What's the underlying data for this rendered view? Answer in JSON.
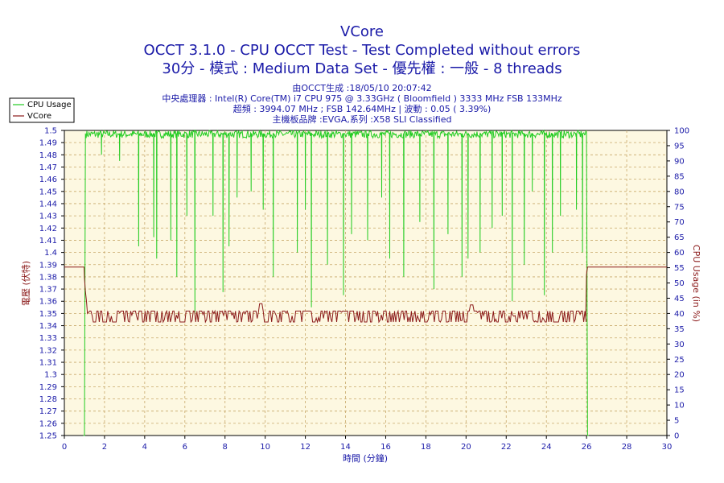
{
  "chart_data": {
    "type": "line",
    "title": "VCore",
    "subtitle1": "OCCT 3.1.0 - CPU OCCT Test - Test Completed without errors",
    "subtitle2": "30分 - 模式 : Medium Data Set - 優先權 : 一般 - 8 threads",
    "info": [
      "由OCCT生成 :18/05/10 20:07:42",
      "中央處理器 : Intel(R) Core(TM) i7 CPU 975 @ 3.33GHz ( Bloomfield ) 3333 MHz FSB 133MHz",
      "超頻 : 3994.07 MHz ; FSB 142.64MHz | 波動 : 0.05 ( 3.39%)",
      "主機板品牌 :EVGA,系列 :X58 SLI Classified"
    ],
    "xlabel": "時間 (分鐘)",
    "ylabel_left": "電壓 (伏特)",
    "ylabel_right": "CPU Usage (in %)",
    "xlim": [
      0,
      30
    ],
    "ylim_left": [
      1.25,
      1.5
    ],
    "ylim_right": [
      0,
      100
    ],
    "xticks": [
      "0",
      "2",
      "4",
      "6",
      "8",
      "10",
      "12",
      "14",
      "16",
      "18",
      "20",
      "22",
      "24",
      "26",
      "28",
      "30"
    ],
    "yticks_left": [
      "1.25",
      "1.26",
      "1.27",
      "1.28",
      "1.29",
      "1.3",
      "1.31",
      "1.32",
      "1.33",
      "1.34",
      "1.35",
      "1.36",
      "1.37",
      "1.38",
      "1.39",
      "1.4",
      "1.41",
      "1.42",
      "1.43",
      "1.44",
      "1.45",
      "1.46",
      "1.47",
      "1.48",
      "1.49",
      "1.5"
    ],
    "yticks_right": [
      "0",
      "5",
      "10",
      "15",
      "20",
      "25",
      "30",
      "35",
      "40",
      "45",
      "50",
      "55",
      "60",
      "65",
      "70",
      "75",
      "80",
      "85",
      "90",
      "95",
      "100"
    ],
    "grid": true,
    "legend": "top-left",
    "colors": {
      "cpu_usage": "#22cc22",
      "vcore": "#8b1a1a",
      "plot_bg": "#fdf8e1",
      "text": "#1a1aa8"
    },
    "series": [
      {
        "name": "CPU Usage",
        "axis": "right",
        "x": [
          0.95,
          1.0,
          1.05,
          1.1,
          1.2,
          4,
          4,
          26,
          26.05,
          26.1
        ],
        "values": [
          0,
          0,
          99,
          99,
          99,
          99,
          99,
          99,
          0,
          0
        ],
        "dips": [
          [
            1.85,
            92
          ],
          [
            2.75,
            90
          ],
          [
            3.7,
            62
          ],
          [
            4.45,
            65
          ],
          [
            4.6,
            58
          ],
          [
            5.3,
            64
          ],
          [
            5.6,
            52
          ],
          [
            6.1,
            72
          ],
          [
            6.5,
            40
          ],
          [
            7.4,
            72
          ],
          [
            7.9,
            47
          ],
          [
            8.2,
            62
          ],
          [
            8.6,
            78
          ],
          [
            9.3,
            80
          ],
          [
            9.9,
            74
          ],
          [
            10.4,
            52
          ],
          [
            11.6,
            60
          ],
          [
            12.0,
            74
          ],
          [
            12.3,
            42
          ],
          [
            13.1,
            56
          ],
          [
            13.9,
            46
          ],
          [
            14.3,
            66
          ],
          [
            15.1,
            64
          ],
          [
            15.8,
            78
          ],
          [
            16.2,
            58
          ],
          [
            16.9,
            52
          ],
          [
            17.7,
            70
          ],
          [
            18.4,
            48
          ],
          [
            19.1,
            66
          ],
          [
            19.8,
            52
          ],
          [
            20.1,
            58
          ],
          [
            20.7,
            60
          ],
          [
            21.3,
            68
          ],
          [
            21.8,
            72
          ],
          [
            22.3,
            44
          ],
          [
            22.9,
            56
          ],
          [
            23.3,
            80
          ],
          [
            23.9,
            46
          ],
          [
            24.3,
            60
          ],
          [
            24.7,
            72
          ],
          [
            25.5,
            74
          ],
          [
            25.8,
            60
          ]
        ]
      },
      {
        "name": "VCore",
        "axis": "left",
        "x": [
          0,
          0.98,
          1.0,
          1.1,
          1.2,
          1.3,
          3.9,
          4.0,
          5.5,
          6.0,
          7.9,
          8.5,
          9.7,
          9.8,
          9.9,
          10.5,
          19.8,
          20.0,
          20.3,
          20.5,
          25.95,
          26.0,
          26.05,
          30
        ],
        "values": [
          1.388,
          1.388,
          1.379,
          1.365,
          1.346,
          1.345,
          1.343,
          1.352,
          1.352,
          1.352,
          1.352,
          1.352,
          1.352,
          1.358,
          1.352,
          1.352,
          1.352,
          1.358,
          1.352,
          1.352,
          1.347,
          1.382,
          1.388,
          1.388
        ],
        "noise_low": 1.343,
        "noise_high": 1.352
      }
    ]
  }
}
